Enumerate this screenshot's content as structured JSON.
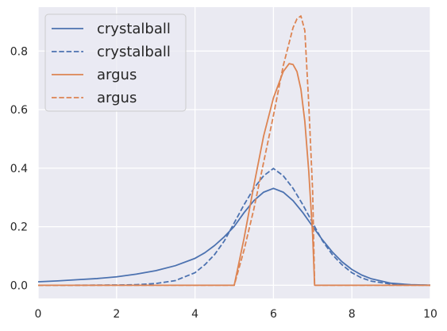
{
  "chart_data": {
    "type": "line",
    "title": "",
    "xlabel": "",
    "ylabel": "",
    "xlim": [
      0,
      10
    ],
    "ylim": [
      -0.045,
      0.95
    ],
    "xticks": [
      0,
      2,
      4,
      6,
      8,
      10
    ],
    "yticks": [
      0.0,
      0.2,
      0.4,
      0.6,
      0.8
    ],
    "xtick_labels": [
      "0",
      "2",
      "4",
      "6",
      "8",
      "10"
    ],
    "ytick_labels": [
      "0.0",
      "0.2",
      "0.4",
      "0.6",
      "0.8"
    ],
    "grid": true,
    "style": "seaborn-darkgrid",
    "background_color": "#eaeaf2",
    "grid_color": "#ffffff",
    "legend_position": "top-left",
    "series": [
      {
        "name": "crystalball",
        "color": "#4c72b0",
        "linestyle": "solid",
        "x": [
          0,
          0.5,
          1,
          1.5,
          2,
          2.5,
          3,
          3.5,
          4,
          4.25,
          4.5,
          4.75,
          5,
          5.25,
          5.5,
          5.75,
          6,
          6.25,
          6.5,
          6.75,
          7,
          7.25,
          7.5,
          7.75,
          8,
          8.25,
          8.5,
          9,
          9.5,
          10
        ],
        "y": [
          0.012,
          0.015,
          0.019,
          0.023,
          0.029,
          0.038,
          0.05,
          0.067,
          0.092,
          0.111,
          0.136,
          0.166,
          0.201,
          0.248,
          0.289,
          0.318,
          0.331,
          0.318,
          0.289,
          0.248,
          0.201,
          0.155,
          0.114,
          0.08,
          0.054,
          0.035,
          0.022,
          0.007,
          0.002,
          0.0005
        ]
      },
      {
        "name": "crystalball",
        "color": "#4c72b0",
        "linestyle": "dashed",
        "x": [
          0,
          1,
          2,
          2.5,
          3,
          3.5,
          4,
          4.25,
          4.5,
          4.75,
          5,
          5.25,
          5.5,
          5.75,
          6,
          6.25,
          6.5,
          6.75,
          7,
          7.25,
          7.5,
          7.75,
          8,
          8.25,
          8.5,
          9,
          9.5,
          10
        ],
        "y": [
          0.0,
          0.0002,
          0.001,
          0.002,
          0.006,
          0.016,
          0.043,
          0.07,
          0.105,
          0.152,
          0.213,
          0.275,
          0.331,
          0.374,
          0.399,
          0.374,
          0.331,
          0.275,
          0.213,
          0.152,
          0.105,
          0.07,
          0.043,
          0.025,
          0.014,
          0.004,
          0.001,
          0.0002
        ]
      },
      {
        "name": "argus",
        "color": "#dd8452",
        "linestyle": "solid",
        "x": [
          0,
          4.95,
          5.0,
          5.25,
          5.5,
          5.75,
          6.0,
          6.25,
          6.4,
          6.5,
          6.6,
          6.7,
          6.8,
          6.9,
          7.0,
          7.05,
          7.1,
          10
        ],
        "y": [
          0.0,
          0.0,
          0.0,
          0.16,
          0.34,
          0.51,
          0.64,
          0.73,
          0.757,
          0.754,
          0.73,
          0.67,
          0.56,
          0.39,
          0.17,
          0.0,
          0.0,
          0.0
        ]
      },
      {
        "name": "argus",
        "color": "#dd8452",
        "linestyle": "dashed",
        "x": [
          0,
          4.95,
          5.0,
          5.25,
          5.5,
          5.75,
          6.0,
          6.25,
          6.5,
          6.6,
          6.7,
          6.8,
          6.9,
          7.0,
          7.05,
          7.1,
          10
        ],
        "y": [
          0.0,
          0.0,
          0.0,
          0.12,
          0.26,
          0.42,
          0.58,
          0.75,
          0.88,
          0.91,
          0.92,
          0.87,
          0.62,
          0.32,
          0.0,
          0.0,
          0.0
        ]
      }
    ]
  }
}
